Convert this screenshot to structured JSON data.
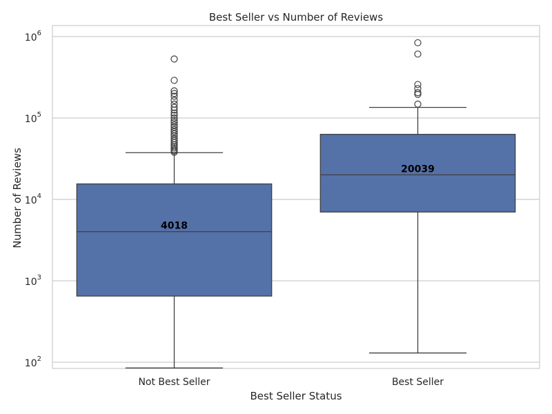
{
  "chart_data": {
    "type": "box",
    "title": "Best Seller vs Number of Reviews",
    "xlabel": "Best Seller Status",
    "ylabel": "Number of Reviews",
    "yscale": "log",
    "ylim": [
      85,
      1300000
    ],
    "y_ticks": [
      {
        "value": 100,
        "base": "10",
        "exp": "2"
      },
      {
        "value": 1000,
        "base": "10",
        "exp": "3"
      },
      {
        "value": 10000,
        "base": "10",
        "exp": "4"
      },
      {
        "value": 100000,
        "base": "10",
        "exp": "5"
      },
      {
        "value": 1000000,
        "base": "10",
        "exp": "6"
      }
    ],
    "grid": true,
    "box_color": "#5471a8",
    "categories": [
      "Not Best Seller",
      "Best Seller"
    ],
    "boxes": [
      {
        "category": "Not Best Seller",
        "whisker_low": 85,
        "q1": 650,
        "median": 4018,
        "q3": 15500,
        "whisker_high": 37500,
        "median_label": "4018",
        "outliers": [
          38000,
          39500,
          41000,
          43000,
          45000,
          47000,
          50000,
          53000,
          56000,
          60000,
          64000,
          68000,
          72000,
          77000,
          82000,
          88000,
          93000,
          100000,
          108000,
          115000,
          125000,
          135000,
          148000,
          165000,
          185000,
          200000,
          215000,
          290000,
          530000
        ]
      },
      {
        "category": "Best Seller",
        "whisker_low": 130,
        "q1": 7000,
        "median": 20039,
        "q3": 63000,
        "whisker_high": 135000,
        "median_label": "20039",
        "outliers": [
          148000,
          195000,
          205000,
          230000,
          258000,
          610000,
          840000
        ]
      }
    ]
  }
}
